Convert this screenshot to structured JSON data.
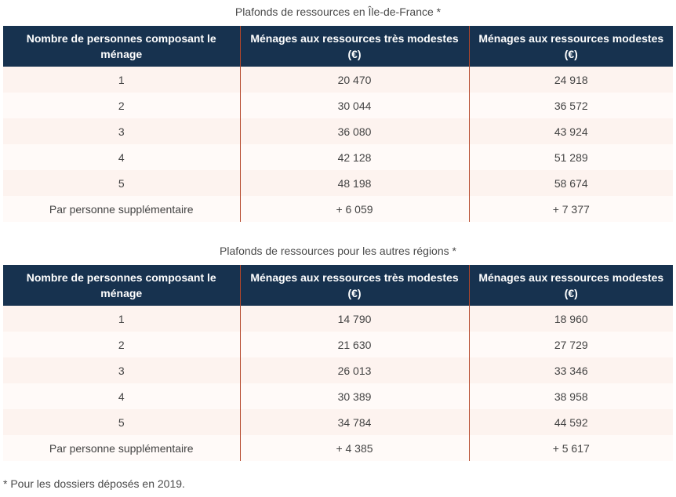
{
  "headers": [
    "Nombre de personnes composant le ménage",
    "Ménages aux ressources très modestes (€)",
    "Ménages aux ressources modestes (€)"
  ],
  "tables": [
    {
      "caption": "Plafonds de ressources en Île-de-France *",
      "rows": [
        [
          "1",
          "20 470",
          "24 918"
        ],
        [
          "2",
          "30 044",
          "36 572"
        ],
        [
          "3",
          "36 080",
          "43 924"
        ],
        [
          "4",
          "42 128",
          "51 289"
        ],
        [
          "5",
          "48 198",
          "58 674"
        ],
        [
          "Par personne supplémentaire",
          "+ 6 059",
          "+ 7 377"
        ]
      ]
    },
    {
      "caption": "Plafonds de ressources pour les autres régions *",
      "rows": [
        [
          "1",
          "14 790",
          "18 960"
        ],
        [
          "2",
          "21 630",
          "27 729"
        ],
        [
          "3",
          "26 013",
          "33 346"
        ],
        [
          "4",
          "30 389",
          "38 958"
        ],
        [
          "5",
          "34 784",
          "44 592"
        ],
        [
          "Par personne supplémentaire",
          "+ 4 385",
          "+ 5 617"
        ]
      ]
    }
  ],
  "footnote": "* Pour les dossiers déposés en 2019."
}
